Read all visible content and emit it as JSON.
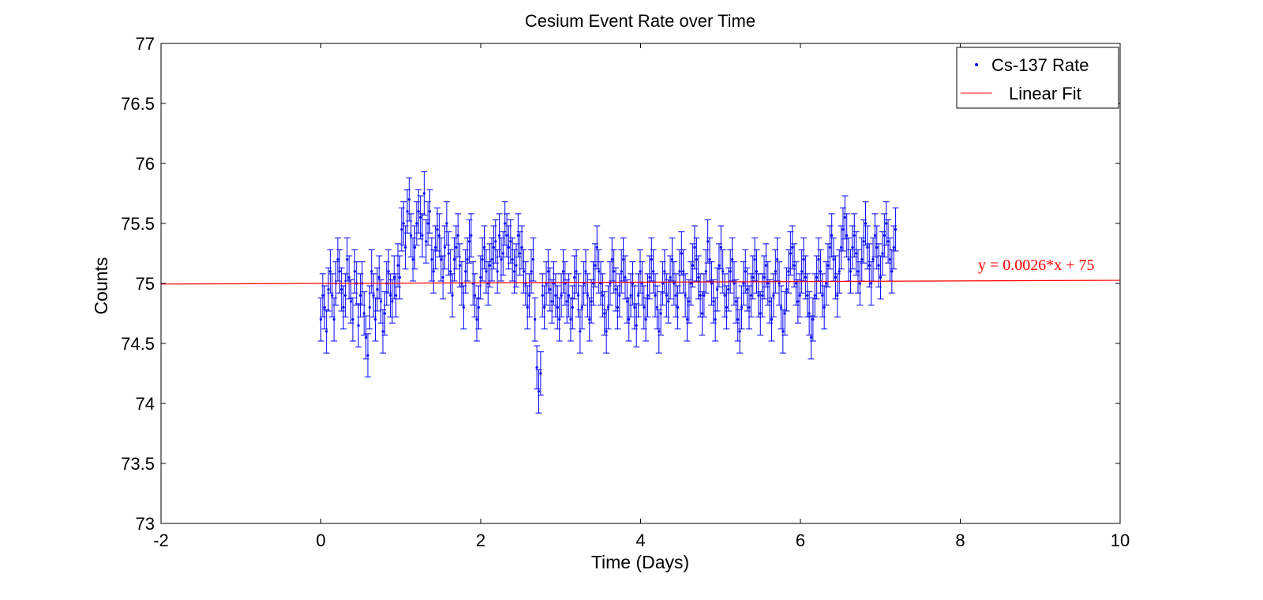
{
  "colors": {
    "data": "#0000ff",
    "fit": "#ff0000",
    "axis": "#000000",
    "background": "#ffffff"
  },
  "chart_data": {
    "type": "scatter",
    "title": "Cesium Event Rate over Time",
    "xlabel": "Time (Days)",
    "ylabel": "Counts",
    "xlim": [
      -2,
      10
    ],
    "ylim": [
      73,
      77
    ],
    "xticks": [
      -2,
      0,
      2,
      4,
      6,
      8,
      10
    ],
    "yticks": [
      73,
      73.5,
      74,
      74.5,
      75,
      75.5,
      76,
      76.5,
      77
    ],
    "xtick_labels": [
      "-2",
      "0",
      "2",
      "4",
      "6",
      "8",
      "10"
    ],
    "ytick_labels": [
      "73",
      "73.5",
      "74",
      "74.5",
      "75",
      "75.5",
      "76",
      "76.5",
      "77"
    ],
    "grid": false,
    "legend_position": "top-right",
    "legend": [
      "Cs-137 Rate",
      "Linear Fit"
    ],
    "annotation": "y = 0.0026*x + 75",
    "series": [
      {
        "name": "Cs-137 Rate",
        "kind": "points-with-errorbars",
        "x_start": 0,
        "x_step": 0.0235,
        "error": 0.18,
        "y": [
          74.7,
          74.9,
          74.8,
          74.6,
          74.95,
          75.1,
          74.9,
          74.7,
          75.0,
          75.2,
          75.1,
          74.95,
          74.8,
          74.9,
          75.2,
          75.05,
          74.85,
          74.7,
          75.1,
          75.0,
          74.65,
          74.9,
          75.0,
          74.75,
          74.55,
          74.4,
          74.8,
          75.1,
          74.9,
          74.7,
          74.95,
          75.05,
          74.85,
          74.6,
          74.75,
          75.0,
          75.1,
          74.9,
          74.85,
          75.05,
          74.9,
          75.15,
          75.05,
          75.45,
          75.5,
          75.3,
          75.6,
          75.7,
          75.4,
          75.2,
          75.3,
          75.5,
          75.6,
          75.55,
          75.4,
          75.75,
          75.35,
          75.5,
          75.6,
          75.2,
          75.1,
          75.3,
          75.45,
          75.4,
          75.2,
          75.05,
          75.3,
          75.5,
          75.25,
          75.1,
          74.9,
          75.2,
          75.3,
          75.4,
          75.15,
          75.0,
          74.8,
          75.1,
          75.2,
          75.35,
          75.4,
          75.0,
          74.9,
          74.7,
          74.8,
          75.05,
          75.2,
          75.3,
          75.1,
          75.0,
          75.15,
          75.2,
          75.3,
          75.35,
          75.1,
          75.4,
          75.2,
          75.25,
          75.5,
          75.4,
          75.3,
          75.35,
          75.2,
          75.1,
          75.15,
          75.4,
          75.25,
          75.3,
          75.1,
          75.0,
          74.8,
          74.9,
          75.1,
          75.2,
          74.7,
          74.3,
          74.1,
          74.25,
          74.9,
          74.8,
          75.0,
          75.1,
          74.95,
          74.85,
          75.0,
          74.9,
          74.8,
          74.7,
          74.9,
          75.1,
          75.0,
          74.85,
          74.9,
          74.7,
          74.8,
          75.05,
          75.1,
          74.9,
          74.6,
          74.8,
          75.0,
          75.1,
          74.9,
          74.7,
          74.85,
          75.0,
          75.15,
          75.3,
          75.1,
          75.0,
          74.9,
          74.75,
          74.6,
          74.8,
          75.0,
          75.2,
          75.1,
          74.95,
          74.8,
          74.9,
          75.1,
          75.2,
          75.05,
          74.85,
          74.7,
          74.9,
          75.0,
          74.8,
          74.65,
          74.9,
          75.1,
          75.0,
          74.8,
          74.7,
          74.9,
          75.05,
          75.2,
          75.1,
          74.9,
          74.8,
          74.6,
          74.75,
          75.0,
          75.1,
          74.9,
          74.85,
          75.05,
          75.2,
          75.0,
          74.9,
          74.8,
          75.1,
          75.25,
          75.1,
          74.9,
          74.7,
          74.85,
          75.0,
          75.15,
          75.3,
          75.2,
          75.05,
          74.9,
          74.75,
          74.9,
          75.1,
          75.35,
          75.2,
          75.0,
          74.85,
          74.7,
          74.95,
          75.15,
          75.3,
          75.1,
          74.9,
          74.8,
          74.95,
          75.1,
          75.2,
          75.0,
          74.85,
          74.7,
          74.6,
          74.8,
          75.0,
          75.1,
          74.95,
          74.8,
          74.9,
          75.05,
          75.2,
          75.1,
          74.9,
          74.75,
          74.9,
          75.05,
          75.15,
          75.0,
          74.85,
          74.7,
          74.9,
          75.1,
          75.2,
          75.0,
          74.8,
          74.6,
          74.75,
          74.95,
          75.1,
          75.25,
          75.3,
          75.15,
          75.0,
          74.85,
          74.9,
          75.1,
          75.2,
          75.05,
          74.9,
          74.75,
          74.55,
          74.7,
          74.9,
          75.05,
          75.2,
          75.1,
          74.9,
          74.8,
          75.0,
          75.15,
          75.3,
          75.4,
          75.2,
          75.05,
          74.9,
          75.1,
          75.3,
          75.45,
          75.55,
          75.4,
          75.2,
          75.1,
          75.3,
          75.4,
          75.25,
          75.1,
          75.0,
          75.2,
          75.35,
          75.5,
          75.3,
          75.15,
          75.0,
          75.2,
          75.4,
          75.3,
          75.15,
          75.05,
          75.25,
          75.4,
          75.5,
          75.35,
          75.2,
          75.1,
          75.3,
          75.45
        ]
      },
      {
        "name": "Linear Fit",
        "kind": "line",
        "slope": 0.0026,
        "intercept": 75,
        "x_range": [
          -2,
          10
        ]
      }
    ]
  }
}
